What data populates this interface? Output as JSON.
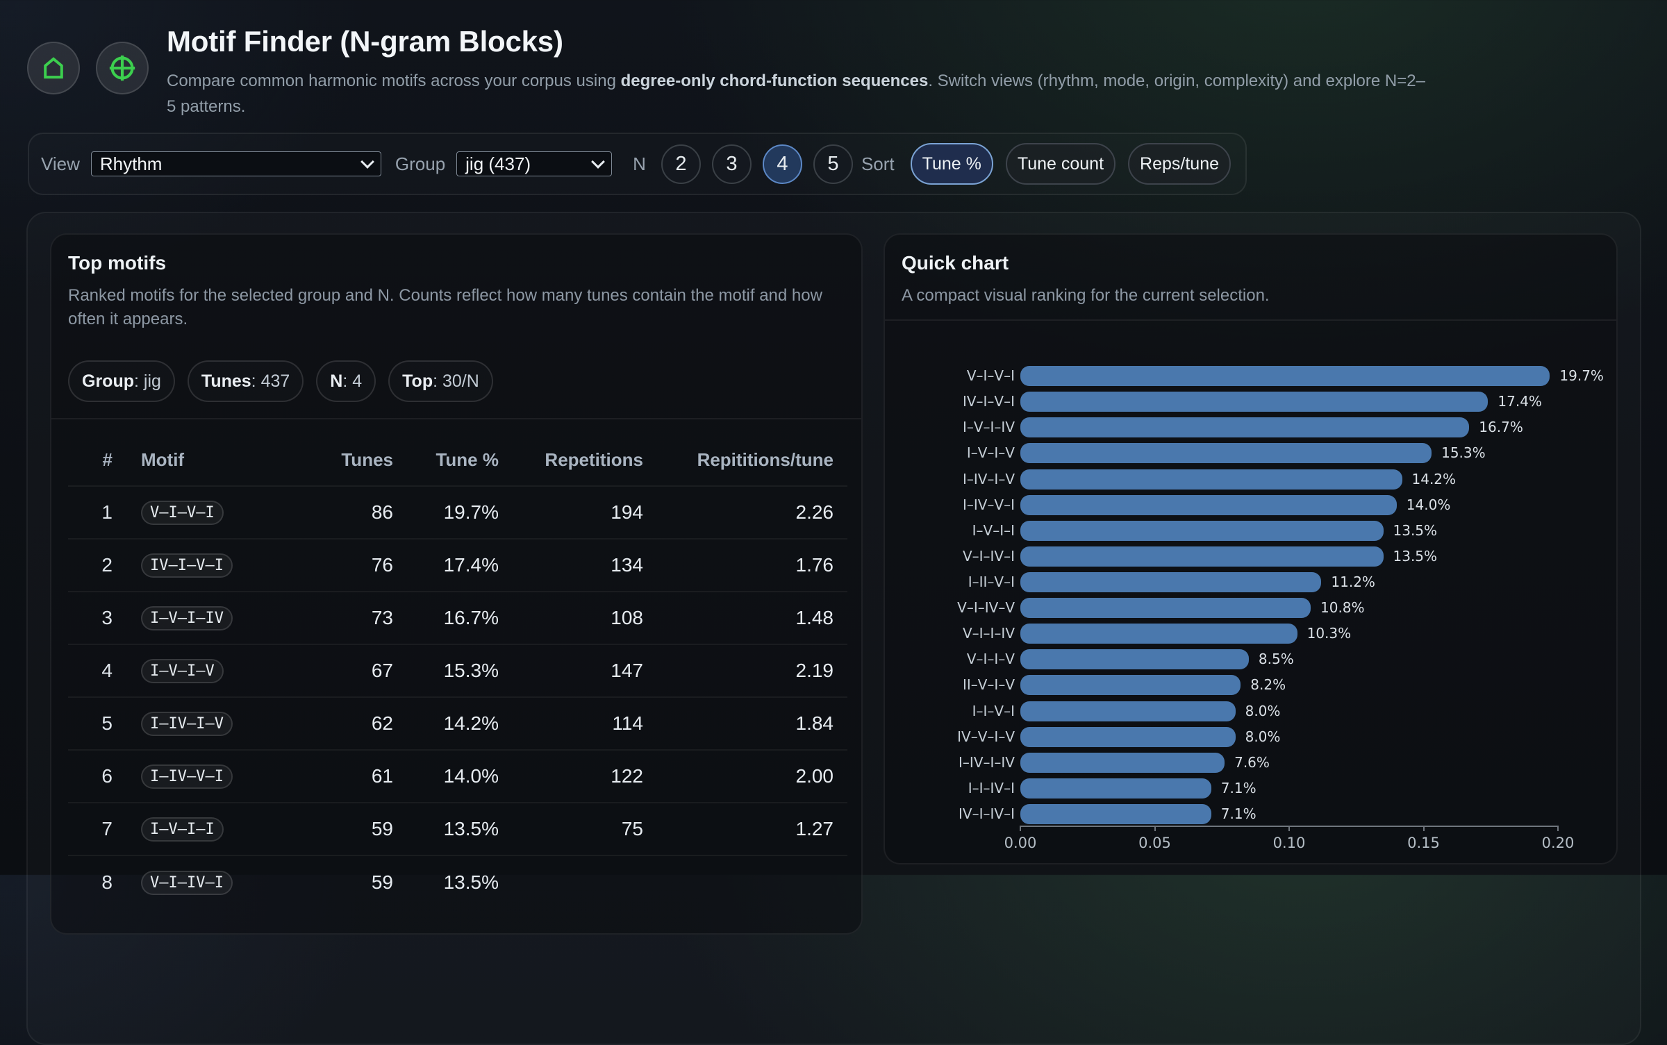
{
  "header": {
    "title": "Motif Finder (N-gram Blocks)",
    "desc_part1": "Compare common harmonic motifs across your corpus using ",
    "desc_bold": "degree-only chord-function sequences",
    "desc_part2": ". Switch views (rhythm, mode, origin, complexity) and explore N=2–",
    "desc_part3": "5 patterns."
  },
  "toolbar": {
    "view_label": "View",
    "view_value": "Rhythm",
    "group_label": "Group",
    "group_value": "jig (437)",
    "n_label": "N",
    "n_options": [
      {
        "label": "2",
        "active": false
      },
      {
        "label": "3",
        "active": false
      },
      {
        "label": "4",
        "active": true
      },
      {
        "label": "5",
        "active": false
      }
    ],
    "sort_label": "Sort",
    "sort_options": [
      {
        "label": "Tune %",
        "active": true
      },
      {
        "label": "Tune count",
        "active": false
      },
      {
        "label": "Reps/tune",
        "active": false
      }
    ]
  },
  "top_motifs": {
    "title": "Top motifs",
    "desc_line1": "Ranked motifs for the selected group and N. Counts reflect how many tunes contain the motif and how",
    "desc_line2": "often it appears.",
    "chips": [
      {
        "label": "Group",
        "value": ": jig"
      },
      {
        "label": "Tunes",
        "value": ": 437"
      },
      {
        "label": "N",
        "value": ": 4"
      },
      {
        "label": "Top",
        "value": ": 30/N"
      }
    ],
    "columns": [
      "#",
      "Motif",
      "Tunes",
      "Tune %",
      "Repetitions",
      "Repititions/tune"
    ],
    "rows": [
      {
        "rank": "1",
        "motif": "V–I–V–I",
        "tunes": "86",
        "tune_pct": "19.7%",
        "reps": "194",
        "reps_per_tune": "2.26"
      },
      {
        "rank": "2",
        "motif": "IV–I–V–I",
        "tunes": "76",
        "tune_pct": "17.4%",
        "reps": "134",
        "reps_per_tune": "1.76"
      },
      {
        "rank": "3",
        "motif": "I–V–I–IV",
        "tunes": "73",
        "tune_pct": "16.7%",
        "reps": "108",
        "reps_per_tune": "1.48"
      },
      {
        "rank": "4",
        "motif": "I–V–I–V",
        "tunes": "67",
        "tune_pct": "15.3%",
        "reps": "147",
        "reps_per_tune": "2.19"
      },
      {
        "rank": "5",
        "motif": "I–IV–I–V",
        "tunes": "62",
        "tune_pct": "14.2%",
        "reps": "114",
        "reps_per_tune": "1.84"
      },
      {
        "rank": "6",
        "motif": "I–IV–V–I",
        "tunes": "61",
        "tune_pct": "14.0%",
        "reps": "122",
        "reps_per_tune": "2.00"
      },
      {
        "rank": "7",
        "motif": "I–V–I–I",
        "tunes": "59",
        "tune_pct": "13.5%",
        "reps": "75",
        "reps_per_tune": "1.27"
      },
      {
        "rank": "8",
        "motif": "V–I–IV–I",
        "tunes": "59",
        "tune_pct": "13.5%",
        "reps": "",
        "reps_per_tune": ""
      }
    ]
  },
  "quick_chart": {
    "title": "Quick chart",
    "desc": "A compact visual ranking for the current selection."
  },
  "chart_data": {
    "type": "bar",
    "orientation": "horizontal",
    "title": "Quick chart",
    "categories": [
      "V–I–V–I",
      "IV–I–V–I",
      "I–V–I–IV",
      "I–V–I–V",
      "I–IV–I–V",
      "I–IV–V–I",
      "I–V–I–I",
      "V–I–IV–I",
      "I–II–V–I",
      "V–I–IV–V",
      "V–I–I–IV",
      "V–I–I–V",
      "II–V–I–V",
      "I–I–V–I",
      "IV–V–I–V",
      "I–IV–I–IV",
      "I–I–IV–I",
      "IV–I–IV–I"
    ],
    "values": [
      0.197,
      0.174,
      0.167,
      0.153,
      0.142,
      0.14,
      0.135,
      0.135,
      0.112,
      0.108,
      0.103,
      0.085,
      0.082,
      0.08,
      0.08,
      0.076,
      0.071,
      0.071
    ],
    "value_labels": [
      "19.7%",
      "17.4%",
      "16.7%",
      "15.3%",
      "14.2%",
      "14.0%",
      "13.5%",
      "13.5%",
      "11.2%",
      "10.8%",
      "10.3%",
      "8.5%",
      "8.2%",
      "8.0%",
      "8.0%",
      "7.6%",
      "7.1%",
      "7.1%"
    ],
    "xlabel": "",
    "ylabel": "",
    "xlim": [
      0,
      0.2
    ],
    "xticks": [
      0,
      0.05,
      0.1,
      0.15,
      0.2
    ],
    "xtick_labels": [
      "0.00",
      "0.05",
      "0.10",
      "0.15",
      "0.20"
    ],
    "bar_color": "#4a78ad",
    "grid": false,
    "legend": false
  }
}
